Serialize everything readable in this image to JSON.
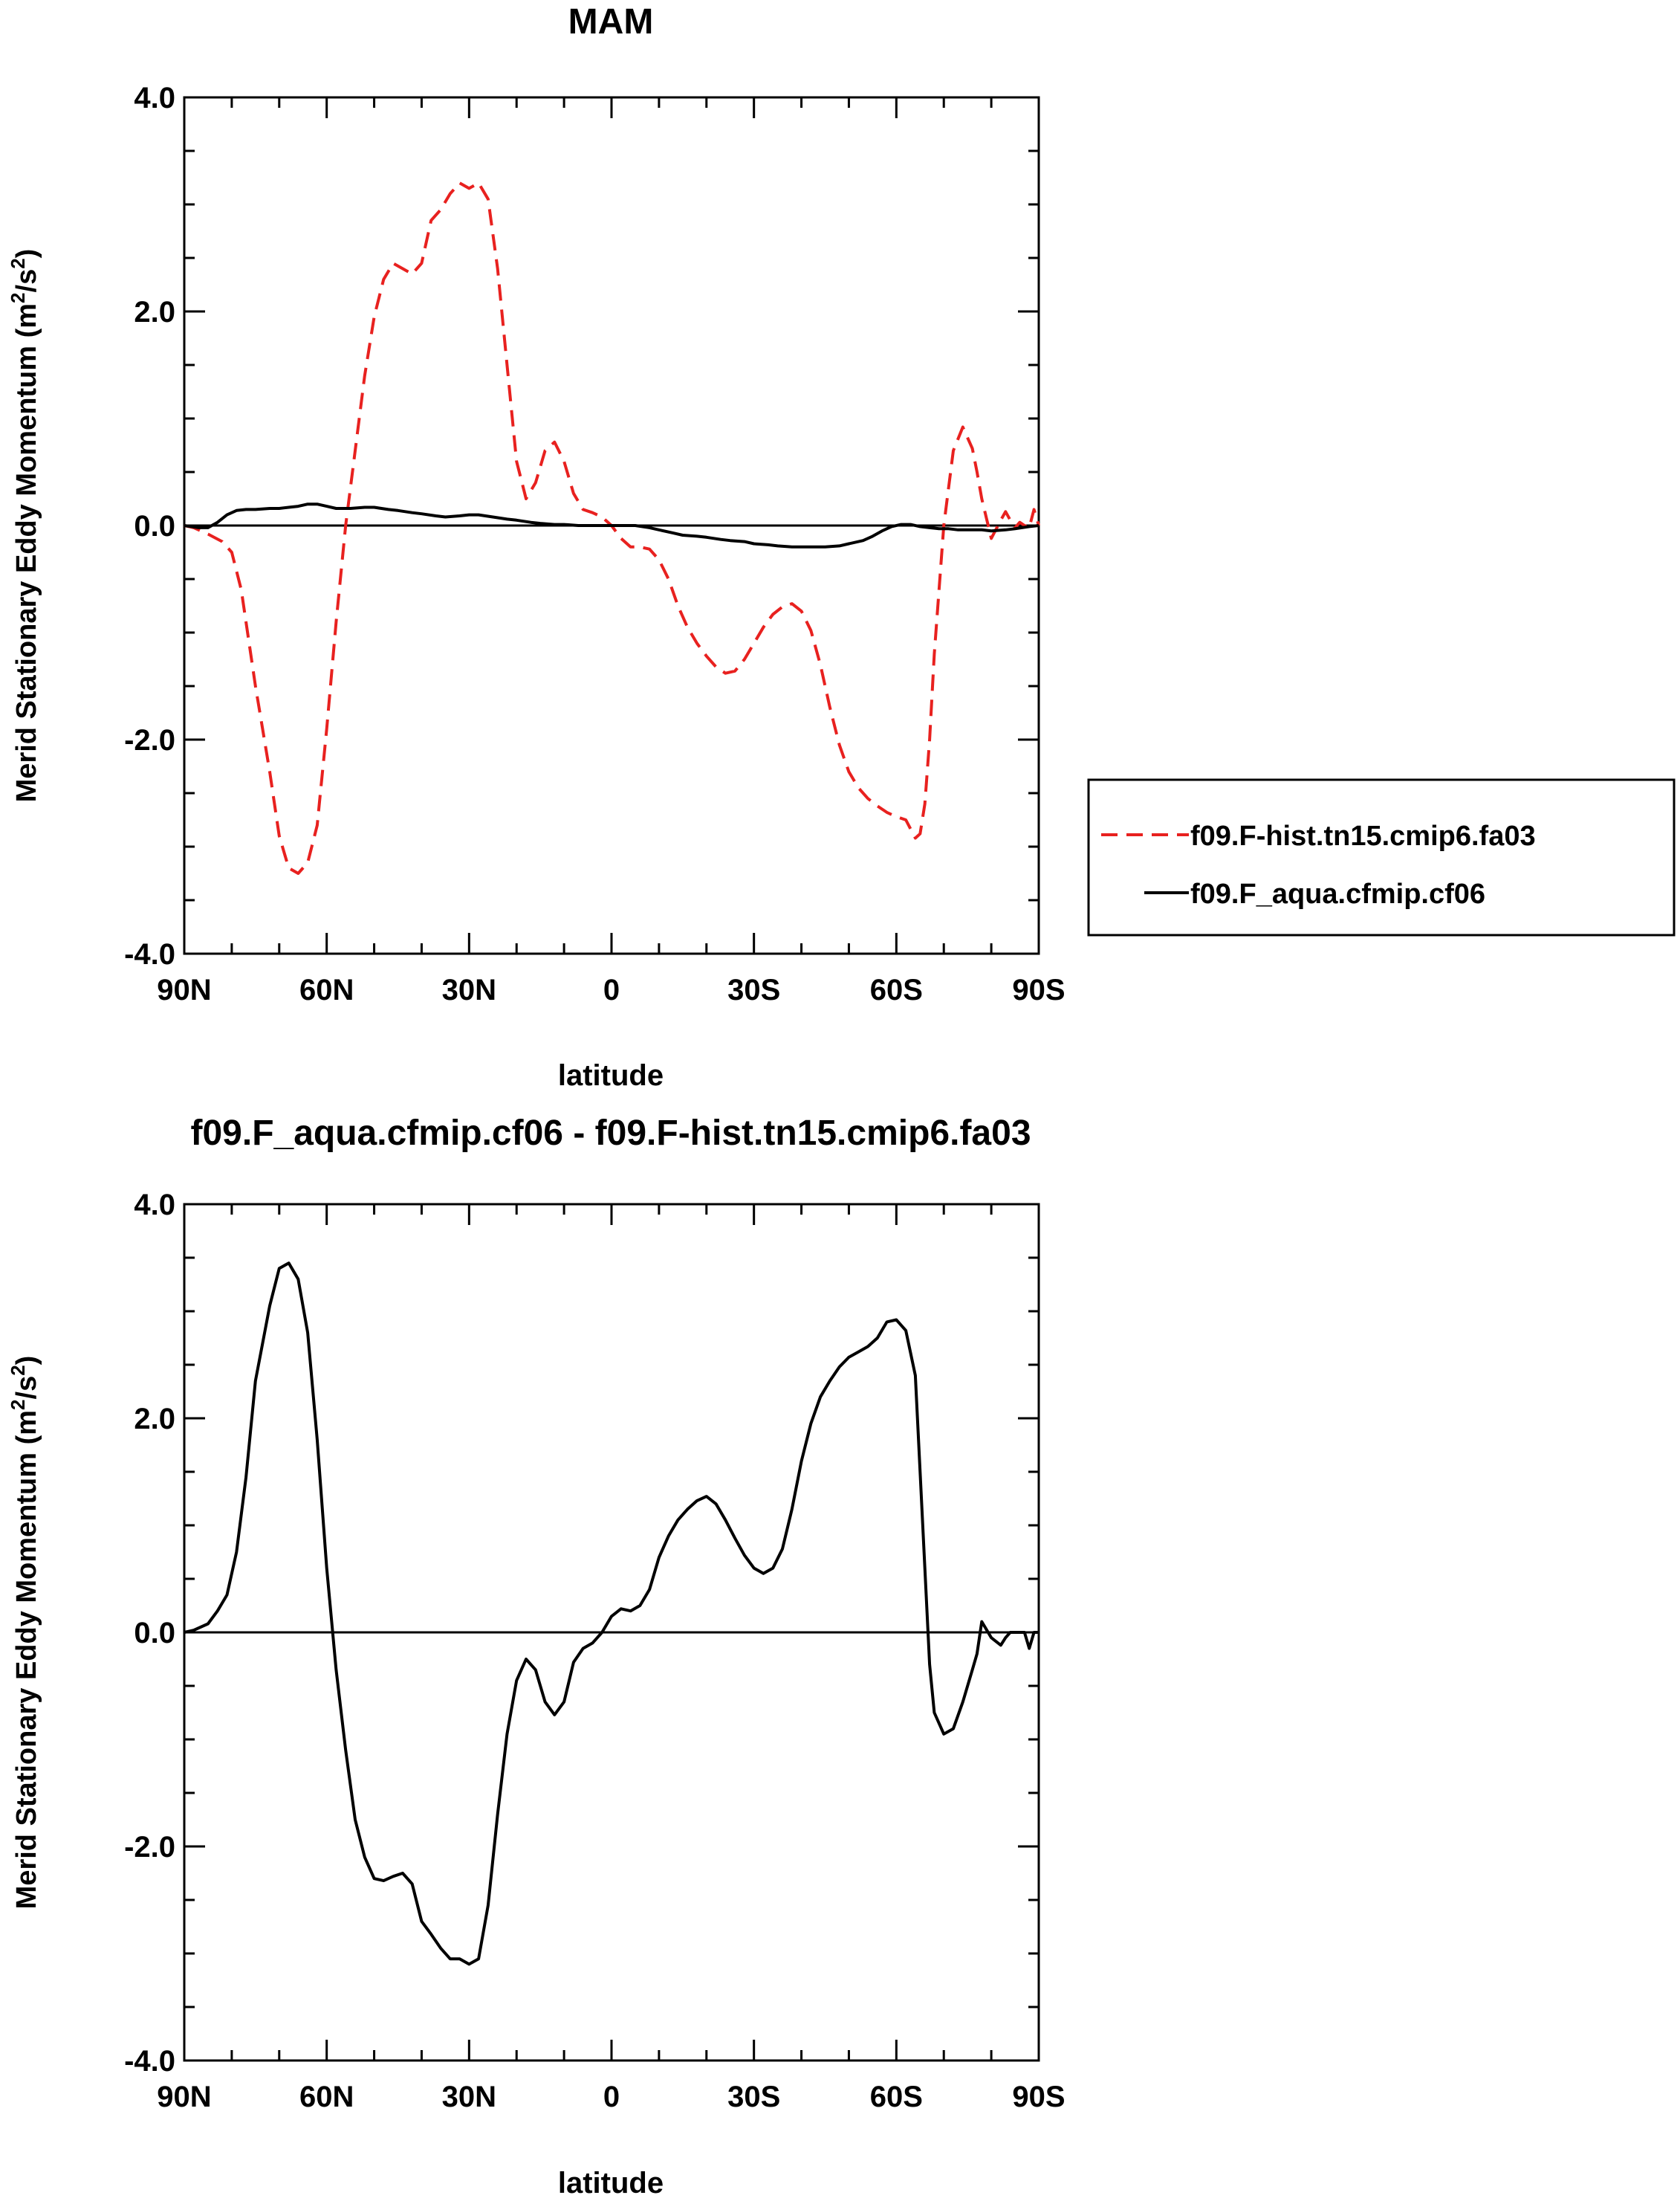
{
  "chart_data": [
    {
      "type": "line",
      "title": "MAM",
      "xlabel": "latitude",
      "ylabel": "Merid Stationary Eddy Momentum (m²/s²)",
      "ylabel_parts": [
        "Merid Stationary Eddy Momentum (m",
        "2",
        "/s",
        "2",
        ")"
      ],
      "xlim": [
        90,
        -90
      ],
      "ylim": [
        -4,
        4
      ],
      "xticks": [
        90,
        60,
        30,
        0,
        -30,
        -60,
        -90
      ],
      "xtick_labels": [
        "90N",
        "60N",
        "30N",
        "0",
        "30S",
        "60S",
        "90S"
      ],
      "yticks": [
        4,
        2,
        0,
        -2,
        -4
      ],
      "ytick_labels": [
        "4.0",
        "2.0",
        "0.0",
        "-2.0",
        "-4.0"
      ],
      "grid": false,
      "legend": "right",
      "series": [
        {
          "name": "f09.F-hist.tn15.cmip6.fa03",
          "color": "#e8211f",
          "dash": "dashed",
          "x": [
            90,
            88,
            85,
            82,
            80,
            78,
            75,
            72,
            70,
            68,
            66,
            64,
            62,
            60,
            58,
            56,
            54,
            52,
            50,
            48,
            46,
            44,
            42,
            40,
            38,
            36,
            34,
            32,
            30,
            28,
            26,
            24,
            22,
            20,
            18,
            16,
            14,
            12,
            10,
            8,
            6,
            4,
            2,
            0,
            -2,
            -4,
            -6,
            -8,
            -10,
            -12,
            -14,
            -16,
            -18,
            -20,
            -22,
            -24,
            -26,
            -28,
            -30,
            -32,
            -34,
            -36,
            -38,
            -40,
            -42,
            -44,
            -46,
            -48,
            -50,
            -52,
            -54,
            -56,
            -58,
            -60,
            -62,
            -64,
            -65,
            -66,
            -67,
            -68,
            -70,
            -72,
            -74,
            -76,
            -77,
            -78,
            -80,
            -82,
            -83,
            -84,
            -85,
            -86,
            -87,
            -88,
            -89,
            -90
          ],
          "values": [
            0.0,
            -0.02,
            -0.08,
            -0.15,
            -0.25,
            -0.6,
            -1.5,
            -2.3,
            -2.9,
            -3.2,
            -3.25,
            -3.15,
            -2.8,
            -1.9,
            -0.9,
            0.0,
            0.7,
            1.4,
            1.95,
            2.3,
            2.45,
            2.4,
            2.35,
            2.45,
            2.85,
            2.95,
            3.1,
            3.2,
            3.15,
            3.2,
            3.05,
            2.4,
            1.5,
            0.6,
            0.25,
            0.4,
            0.7,
            0.78,
            0.6,
            0.3,
            0.15,
            0.12,
            0.08,
            0.0,
            -0.12,
            -0.2,
            -0.2,
            -0.22,
            -0.32,
            -0.5,
            -0.75,
            -0.95,
            -1.1,
            -1.22,
            -1.32,
            -1.38,
            -1.36,
            -1.25,
            -1.1,
            -0.95,
            -0.83,
            -0.76,
            -0.73,
            -0.8,
            -0.98,
            -1.3,
            -1.7,
            -2.05,
            -2.3,
            -2.45,
            -2.55,
            -2.62,
            -2.68,
            -2.72,
            -2.75,
            -2.92,
            -2.88,
            -2.6,
            -2.0,
            -1.2,
            0.0,
            0.7,
            0.92,
            0.72,
            0.5,
            0.25,
            -0.12,
            0.05,
            0.13,
            0.05,
            -0.02,
            0.03,
            0.0,
            -0.02,
            0.15,
            0.0
          ]
        },
        {
          "name": "f09.F_aqua.cfmip.cf06",
          "color": "#000000",
          "dash": "solid",
          "x": [
            90,
            87,
            85,
            83,
            81,
            79,
            77,
            75,
            72,
            70,
            68,
            66,
            64,
            62,
            60,
            58,
            55,
            52,
            50,
            47,
            45,
            42,
            40,
            37,
            35,
            32,
            30,
            28,
            25,
            22,
            20,
            17,
            15,
            12,
            10,
            7,
            5,
            2,
            0,
            -3,
            -5,
            -8,
            -10,
            -13,
            -15,
            -18,
            -20,
            -23,
            -25,
            -28,
            -30,
            -33,
            -35,
            -38,
            -40,
            -43,
            -45,
            -48,
            -50,
            -53,
            -55,
            -57,
            -59,
            -61,
            -63,
            -65,
            -67,
            -69,
            -71,
            -73,
            -75,
            -78,
            -80,
            -83,
            -85,
            -88,
            -90
          ],
          "values": [
            0.0,
            -0.02,
            -0.02,
            0.03,
            0.1,
            0.14,
            0.15,
            0.15,
            0.16,
            0.16,
            0.17,
            0.18,
            0.2,
            0.2,
            0.18,
            0.16,
            0.16,
            0.17,
            0.17,
            0.15,
            0.14,
            0.12,
            0.11,
            0.09,
            0.08,
            0.09,
            0.1,
            0.1,
            0.08,
            0.06,
            0.05,
            0.03,
            0.02,
            0.01,
            0.01,
            0.0,
            0.0,
            0.0,
            0.0,
            0.0,
            0.0,
            -0.02,
            -0.04,
            -0.07,
            -0.09,
            -0.1,
            -0.11,
            -0.13,
            -0.14,
            -0.15,
            -0.17,
            -0.18,
            -0.19,
            -0.2,
            -0.2,
            -0.2,
            -0.2,
            -0.19,
            -0.17,
            -0.14,
            -0.1,
            -0.05,
            -0.01,
            0.01,
            0.01,
            -0.01,
            -0.02,
            -0.03,
            -0.03,
            -0.04,
            -0.04,
            -0.04,
            -0.05,
            -0.04,
            -0.03,
            -0.01,
            0.0
          ]
        }
      ]
    },
    {
      "type": "line",
      "title": "f09.F_aqua.cfmip.cf06 - f09.F-hist.tn15.cmip6.fa03",
      "xlabel": "latitude",
      "ylabel": "Merid Stationary Eddy Momentum (m²/s²)",
      "ylabel_parts": [
        "Merid Stationary Eddy Momentum (m",
        "2",
        "/s",
        "2",
        ")"
      ],
      "xlim": [
        90,
        -90
      ],
      "ylim": [
        -4,
        4
      ],
      "xticks": [
        90,
        60,
        30,
        0,
        -30,
        -60,
        -90
      ],
      "xtick_labels": [
        "90N",
        "60N",
        "30N",
        "0",
        "30S",
        "60S",
        "90S"
      ],
      "yticks": [
        4,
        2,
        0,
        -2,
        -4
      ],
      "ytick_labels": [
        "4.0",
        "2.0",
        "0.0",
        "-2.0",
        "-4.0"
      ],
      "grid": false,
      "series": [
        {
          "color": "#000000",
          "dash": "solid",
          "x": [
            90,
            88,
            85,
            83,
            81,
            79,
            77,
            75,
            72,
            70,
            68,
            66,
            64,
            62,
            60,
            58,
            56,
            54,
            52,
            50,
            48,
            46,
            44,
            42,
            40,
            38,
            36,
            34,
            32,
            30,
            28,
            26,
            24,
            22,
            20,
            18,
            16,
            14,
            12,
            10,
            8,
            6,
            4,
            2,
            0,
            -2,
            -4,
            -6,
            -8,
            -10,
            -12,
            -14,
            -16,
            -18,
            -20,
            -22,
            -24,
            -26,
            -28,
            -30,
            -32,
            -34,
            -36,
            -38,
            -40,
            -42,
            -44,
            -46,
            -48,
            -50,
            -52,
            -54,
            -56,
            -58,
            -60,
            -62,
            -64,
            -65,
            -66,
            -67,
            -68,
            -70,
            -72,
            -74,
            -76,
            -77,
            -78,
            -80,
            -82,
            -83,
            -84,
            -85,
            -86,
            -87,
            -88,
            -89,
            -90
          ],
          "values": [
            0.0,
            0.02,
            0.08,
            0.2,
            0.35,
            0.75,
            1.45,
            2.35,
            3.05,
            3.4,
            3.45,
            3.3,
            2.8,
            1.8,
            0.6,
            -0.35,
            -1.1,
            -1.75,
            -2.1,
            -2.3,
            -2.32,
            -2.28,
            -2.25,
            -2.35,
            -2.7,
            -2.82,
            -2.95,
            -3.05,
            -3.05,
            -3.1,
            -3.05,
            -2.55,
            -1.7,
            -0.95,
            -0.45,
            -0.25,
            -0.35,
            -0.65,
            -0.77,
            -0.65,
            -0.28,
            -0.15,
            -0.1,
            0.0,
            0.15,
            0.22,
            0.2,
            0.25,
            0.4,
            0.7,
            0.9,
            1.05,
            1.15,
            1.23,
            1.27,
            1.2,
            1.05,
            0.88,
            0.72,
            0.6,
            0.55,
            0.6,
            0.78,
            1.15,
            1.6,
            1.95,
            2.2,
            2.35,
            2.48,
            2.57,
            2.62,
            2.67,
            2.75,
            2.9,
            2.92,
            2.82,
            2.4,
            1.5,
            0.6,
            -0.3,
            -0.75,
            -0.95,
            -0.9,
            -0.65,
            -0.35,
            -0.2,
            0.1,
            -0.05,
            -0.12,
            -0.05,
            0.0,
            0.0,
            0.0,
            0.0,
            -0.15,
            0.0,
            0.0
          ]
        }
      ]
    }
  ]
}
